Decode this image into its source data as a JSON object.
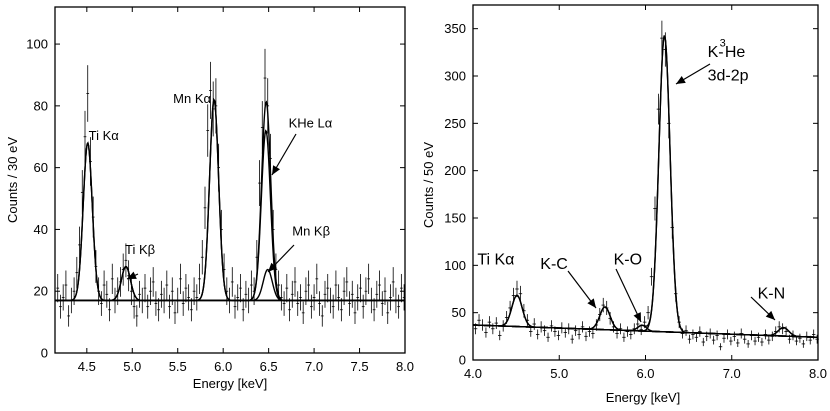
{
  "chart_data": [
    {
      "type": "scatter",
      "id": "left",
      "xlabel": "Energy [keV]",
      "ylabel": "Counts / 30 eV",
      "xlim": [
        4.15,
        8.0
      ],
      "ylim": [
        0,
        112
      ],
      "xticks": [
        {
          "v": 4.5,
          "label": "4.5"
        },
        {
          "v": 5.0,
          "label": "5.0"
        },
        {
          "v": 5.5,
          "label": "5.5"
        },
        {
          "v": 6.0,
          "label": "6.0"
        },
        {
          "v": 6.5,
          "label": "6.5"
        },
        {
          "v": 7.0,
          "label": "7.0"
        },
        {
          "v": 7.5,
          "label": "7.5"
        },
        {
          "v": 8.0,
          "label": "8.0"
        }
      ],
      "yticks": [
        {
          "v": 0,
          "label": "0"
        },
        {
          "v": 20,
          "label": "20"
        },
        {
          "v": 40,
          "label": "40"
        },
        {
          "v": 60,
          "label": "60"
        },
        {
          "v": 80,
          "label": "80"
        },
        {
          "v": 100,
          "label": "100"
        }
      ],
      "baseline": 17,
      "peaks": [
        {
          "label": "Ti Kα",
          "center": 4.51,
          "height": 51,
          "sigma": 0.05
        },
        {
          "label": "Ti Kβ",
          "center": 4.93,
          "height": 11,
          "sigma": 0.05
        },
        {
          "label": "Mn Kα",
          "center": 5.9,
          "height": 65,
          "sigma": 0.05
        },
        {
          "label": "Mn Kβ",
          "center": 6.49,
          "height": 10,
          "sigma": 0.05
        },
        {
          "label": "KHe Lα",
          "center": 6.47,
          "height": 55,
          "sigma": 0.05
        }
      ],
      "annotations": [
        {
          "text": "Ti Kα",
          "x": 4.52,
          "y": 69
        },
        {
          "text": "Ti Kβ",
          "x": 4.92,
          "y": 32
        },
        {
          "text": "Mn Kα",
          "x": 5.45,
          "y": 81
        },
        {
          "text": "KHe Lα",
          "x": 6.72,
          "y": 73
        },
        {
          "text": "Mn Kβ",
          "x": 6.76,
          "y": 38
        }
      ],
      "data_points": [
        [
          4.18,
          21
        ],
        [
          4.21,
          15
        ],
        [
          4.24,
          18
        ],
        [
          4.27,
          22
        ],
        [
          4.3,
          12
        ],
        [
          4.33,
          17
        ],
        [
          4.36,
          20
        ],
        [
          4.39,
          26
        ],
        [
          4.42,
          35
        ],
        [
          4.45,
          52
        ],
        [
          4.48,
          70
        ],
        [
          4.51,
          84
        ],
        [
          4.54,
          62
        ],
        [
          4.57,
          44
        ],
        [
          4.6,
          28
        ],
        [
          4.63,
          20
        ],
        [
          4.66,
          16
        ],
        [
          4.69,
          22
        ],
        [
          4.72,
          19
        ],
        [
          4.75,
          14
        ],
        [
          4.78,
          24
        ],
        [
          4.81,
          17
        ],
        [
          4.84,
          20
        ],
        [
          4.87,
          23
        ],
        [
          4.9,
          27
        ],
        [
          4.93,
          30
        ],
        [
          4.96,
          25
        ],
        [
          4.99,
          20
        ],
        [
          5.02,
          15
        ],
        [
          5.05,
          12
        ],
        [
          5.08,
          19
        ],
        [
          5.11,
          17
        ],
        [
          5.14,
          21
        ],
        [
          5.17,
          15
        ],
        [
          5.2,
          20
        ],
        [
          5.23,
          23
        ],
        [
          5.26,
          16
        ],
        [
          5.29,
          14
        ],
        [
          5.32,
          19
        ],
        [
          5.35,
          17
        ],
        [
          5.38,
          22
        ],
        [
          5.41,
          15
        ],
        [
          5.44,
          20
        ],
        [
          5.47,
          13
        ],
        [
          5.5,
          17
        ],
        [
          5.53,
          24
        ],
        [
          5.56,
          16
        ],
        [
          5.59,
          21
        ],
        [
          5.62,
          18
        ],
        [
          5.65,
          14
        ],
        [
          5.68,
          20
        ],
        [
          5.71,
          18
        ],
        [
          5.74,
          24
        ],
        [
          5.77,
          31
        ],
        [
          5.8,
          47
        ],
        [
          5.83,
          72
        ],
        [
          5.86,
          85
        ],
        [
          5.89,
          79
        ],
        [
          5.92,
          80
        ],
        [
          5.95,
          60
        ],
        [
          5.98,
          40
        ],
        [
          6.01,
          27
        ],
        [
          6.04,
          20
        ],
        [
          6.07,
          17
        ],
        [
          6.1,
          23
        ],
        [
          6.13,
          15
        ],
        [
          6.16,
          18
        ],
        [
          6.19,
          21
        ],
        [
          6.22,
          14
        ],
        [
          6.25,
          19
        ],
        [
          6.28,
          17
        ],
        [
          6.31,
          22
        ],
        [
          6.34,
          20
        ],
        [
          6.37,
          31
        ],
        [
          6.4,
          55
        ],
        [
          6.43,
          73
        ],
        [
          6.46,
          89
        ],
        [
          6.49,
          80
        ],
        [
          6.52,
          63
        ],
        [
          6.55,
          40
        ],
        [
          6.58,
          27
        ],
        [
          6.61,
          22
        ],
        [
          6.64,
          18
        ],
        [
          6.67,
          16
        ],
        [
          6.7,
          21
        ],
        [
          6.73,
          14
        ],
        [
          6.76,
          19
        ],
        [
          6.79,
          23
        ],
        [
          6.82,
          16
        ],
        [
          6.85,
          18
        ],
        [
          6.88,
          13
        ],
        [
          6.91,
          20
        ],
        [
          6.94,
          22
        ],
        [
          6.97,
          15
        ],
        [
          7.0,
          18
        ],
        [
          7.03,
          24
        ],
        [
          7.06,
          16
        ],
        [
          7.09,
          12
        ],
        [
          7.12,
          19
        ],
        [
          7.15,
          21
        ],
        [
          7.18,
          17
        ],
        [
          7.21,
          15
        ],
        [
          7.24,
          22
        ],
        [
          7.27,
          18
        ],
        [
          7.3,
          14
        ],
        [
          7.33,
          20
        ],
        [
          7.36,
          23
        ],
        [
          7.39,
          16
        ],
        [
          7.42,
          19
        ],
        [
          7.45,
          13
        ],
        [
          7.48,
          18
        ],
        [
          7.51,
          21
        ],
        [
          7.54,
          15
        ],
        [
          7.57,
          20
        ],
        [
          7.6,
          24
        ],
        [
          7.63,
          17
        ],
        [
          7.66,
          14
        ],
        [
          7.69,
          19
        ],
        [
          7.72,
          22
        ],
        [
          7.75,
          16
        ],
        [
          7.78,
          20
        ],
        [
          7.81,
          13
        ],
        [
          7.84,
          18
        ],
        [
          7.87,
          23
        ],
        [
          7.9,
          17
        ],
        [
          7.93,
          15
        ],
        [
          7.96,
          21
        ],
        [
          7.99,
          18
        ]
      ]
    },
    {
      "type": "scatter",
      "id": "right",
      "xlabel": "Energy [keV]",
      "ylabel": "Counts / 50 eV",
      "xlim": [
        4.0,
        8.0
      ],
      "ylim": [
        0,
        375
      ],
      "xticks": [
        {
          "v": 4.0,
          "label": "4.0"
        },
        {
          "v": 5.0,
          "label": "5.0"
        },
        {
          "v": 6.0,
          "label": "6.0"
        },
        {
          "v": 7.0,
          "label": "7.0"
        },
        {
          "v": 8.0,
          "label": "8.0"
        }
      ],
      "yticks": [
        {
          "v": 0,
          "label": "0"
        },
        {
          "v": 50,
          "label": "50"
        },
        {
          "v": 100,
          "label": "100"
        },
        {
          "v": 150,
          "label": "150"
        },
        {
          "v": 200,
          "label": "200"
        },
        {
          "v": 250,
          "label": "250"
        },
        {
          "v": 300,
          "label": "300"
        },
        {
          "v": 350,
          "label": "350"
        }
      ],
      "baseline_start": 37,
      "baseline_end": 24,
      "peaks": [
        {
          "label": "Ti Kα",
          "center": 4.51,
          "height": 33,
          "sigma": 0.06
        },
        {
          "label": "K-C",
          "center": 5.53,
          "height": 24,
          "sigma": 0.06
        },
        {
          "label": "K-O",
          "center": 5.96,
          "height": 6,
          "sigma": 0.05
        },
        {
          "label": "K-3He 3d-2p",
          "center": 6.22,
          "height": 313,
          "sigma": 0.065
        },
        {
          "label": "K-N",
          "center": 7.6,
          "height": 9,
          "sigma": 0.06
        }
      ],
      "annotations": [
        {
          "text": "Ti Kα",
          "x": 4.05,
          "y": 101
        },
        {
          "text": "K-C",
          "x": 4.78,
          "y": 96
        },
        {
          "text": "K-O",
          "x": 5.63,
          "y": 101
        },
        {
          "text": "K-",
          "x": 6.72,
          "y": 320
        },
        {
          "text": "3",
          "x": 6.86,
          "y": 331
        },
        {
          "text": "He",
          "x": 6.92,
          "y": 320
        },
        {
          "text": "3d-2p",
          "x": 6.72,
          "y": 295
        },
        {
          "text": "K-N",
          "x": 7.3,
          "y": 65
        }
      ],
      "data_points": [
        [
          4.03,
          33
        ],
        [
          4.07,
          42
        ],
        [
          4.11,
          37
        ],
        [
          4.15,
          29
        ],
        [
          4.19,
          40
        ],
        [
          4.23,
          33
        ],
        [
          4.27,
          39
        ],
        [
          4.31,
          26
        ],
        [
          4.35,
          36
        ],
        [
          4.39,
          45
        ],
        [
          4.43,
          55
        ],
        [
          4.47,
          68
        ],
        [
          4.51,
          75
        ],
        [
          4.55,
          70
        ],
        [
          4.59,
          52
        ],
        [
          4.63,
          42
        ],
        [
          4.67,
          30
        ],
        [
          4.71,
          38
        ],
        [
          4.75,
          27
        ],
        [
          4.79,
          35
        ],
        [
          4.83,
          31
        ],
        [
          4.87,
          24
        ],
        [
          4.91,
          36
        ],
        [
          4.95,
          30
        ],
        [
          4.99,
          26
        ],
        [
          5.03,
          34
        ],
        [
          5.07,
          29
        ],
        [
          5.11,
          33
        ],
        [
          5.15,
          22
        ],
        [
          5.19,
          31
        ],
        [
          5.23,
          27
        ],
        [
          5.27,
          35
        ],
        [
          5.31,
          25
        ],
        [
          5.35,
          30
        ],
        [
          5.39,
          28
        ],
        [
          5.43,
          37
        ],
        [
          5.47,
          48
        ],
        [
          5.51,
          58
        ],
        [
          5.55,
          55
        ],
        [
          5.59,
          44
        ],
        [
          5.63,
          35
        ],
        [
          5.67,
          28
        ],
        [
          5.71,
          33
        ],
        [
          5.75,
          24
        ],
        [
          5.79,
          30
        ],
        [
          5.83,
          27
        ],
        [
          5.87,
          33
        ],
        [
          5.91,
          38
        ],
        [
          5.95,
          32
        ],
        [
          5.99,
          40
        ],
        [
          6.03,
          50
        ],
        [
          6.07,
          88
        ],
        [
          6.11,
          160
        ],
        [
          6.15,
          265
        ],
        [
          6.19,
          340
        ],
        [
          6.23,
          328
        ],
        [
          6.27,
          250
        ],
        [
          6.31,
          140
        ],
        [
          6.35,
          70
        ],
        [
          6.39,
          40
        ],
        [
          6.43,
          28
        ],
        [
          6.47,
          31
        ],
        [
          6.51,
          22
        ],
        [
          6.55,
          27
        ],
        [
          6.59,
          24
        ],
        [
          6.63,
          30
        ],
        [
          6.67,
          19
        ],
        [
          6.71,
          25
        ],
        [
          6.75,
          28
        ],
        [
          6.79,
          21
        ],
        [
          6.83,
          26
        ],
        [
          6.87,
          14
        ],
        [
          6.91,
          23
        ],
        [
          6.95,
          27
        ],
        [
          6.99,
          20
        ],
        [
          7.03,
          25
        ],
        [
          7.07,
          18
        ],
        [
          7.11,
          28
        ],
        [
          7.15,
          22
        ],
        [
          7.19,
          17
        ],
        [
          7.23,
          26
        ],
        [
          7.27,
          20
        ],
        [
          7.31,
          24
        ],
        [
          7.35,
          19
        ],
        [
          7.39,
          27
        ],
        [
          7.43,
          21
        ],
        [
          7.47,
          25
        ],
        [
          7.51,
          30
        ],
        [
          7.55,
          35
        ],
        [
          7.59,
          33
        ],
        [
          7.63,
          30
        ],
        [
          7.67,
          22
        ],
        [
          7.71,
          26
        ],
        [
          7.75,
          20
        ],
        [
          7.79,
          23
        ],
        [
          7.83,
          17
        ],
        [
          7.87,
          25
        ],
        [
          7.91,
          21
        ],
        [
          7.95,
          27
        ],
        [
          7.99,
          22
        ]
      ]
    }
  ]
}
